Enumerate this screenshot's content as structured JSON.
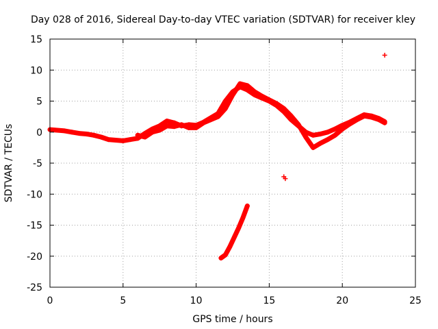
{
  "chart_data": {
    "type": "scatter",
    "title": "Day 028 of 2016, Sidereal Day-to-day VTEC variation (SDTVAR) for receiver kley",
    "xlabel": "GPS time / hours",
    "ylabel": "SDTVAR / TECUs",
    "xlim": [
      0,
      25
    ],
    "ylim": [
      -25,
      15
    ],
    "xticks": [
      0,
      5,
      10,
      15,
      20,
      25
    ],
    "yticks": [
      -25,
      -20,
      -15,
      -10,
      -5,
      0,
      5,
      10,
      15
    ],
    "xtick_labels": [
      "0",
      "5",
      "10",
      "15",
      "20",
      "25"
    ],
    "ytick_labels": [
      "-25",
      "-20",
      "-15",
      "-10",
      "-5",
      "0",
      "5",
      "10",
      "15"
    ],
    "grid": true,
    "marker": "+",
    "color": "#ff0000",
    "series": [
      {
        "name": "main trace",
        "x": [
          0.0,
          0.5,
          1.0,
          1.5,
          2.0,
          2.5,
          3.0,
          3.5,
          4.0,
          4.5,
          5.0,
          5.5,
          6.0,
          6.5,
          7.0,
          7.5,
          8.0,
          8.5,
          9.0,
          9.5,
          10.0,
          10.5,
          11.0,
          11.5,
          12.0,
          12.5,
          13.0,
          13.5,
          14.0,
          14.5,
          15.0,
          15.5,
          16.0,
          16.5,
          17.0,
          17.5,
          18.0,
          18.5,
          19.0,
          19.5,
          20.0,
          20.5,
          21.0,
          21.5,
          22.0,
          22.5,
          22.9
        ],
        "y": [
          0.4,
          0.3,
          0.2,
          0.0,
          -0.2,
          -0.3,
          -0.5,
          -0.8,
          -1.2,
          -1.3,
          -1.4,
          -1.2,
          -1.0,
          -0.2,
          0.5,
          1.0,
          1.8,
          1.5,
          1.0,
          1.2,
          1.1,
          1.6,
          2.3,
          3.0,
          5.0,
          6.5,
          7.3,
          6.8,
          6.0,
          5.5,
          5.0,
          4.3,
          3.3,
          2.0,
          1.0,
          0.0,
          -0.5,
          -0.3,
          0.0,
          0.5,
          1.1,
          1.6,
          2.2,
          2.8,
          2.6,
          2.2,
          1.7
        ]
      },
      {
        "name": "secondary trace",
        "x": [
          6.0,
          6.5,
          7.0,
          7.5,
          8.0,
          8.5,
          9.0,
          9.5,
          10.0,
          10.5,
          11.0,
          11.5,
          12.0,
          12.5,
          13.0,
          13.5,
          14.0,
          14.5,
          15.0,
          15.5,
          16.0,
          16.5,
          17.0,
          17.5,
          18.0,
          18.5,
          19.0,
          19.5,
          20.0,
          20.5,
          21.0,
          21.5,
          22.0,
          22.5,
          22.9
        ],
        "y": [
          -0.5,
          -0.8,
          0.0,
          0.3,
          1.0,
          0.9,
          1.2,
          0.7,
          0.7,
          1.5,
          2.0,
          2.5,
          3.8,
          6.0,
          7.8,
          7.5,
          6.5,
          5.8,
          5.2,
          4.6,
          3.8,
          2.6,
          1.2,
          -0.8,
          -2.5,
          -1.8,
          -1.2,
          -0.5,
          0.5,
          1.3,
          2.0,
          2.6,
          2.4,
          2.0,
          1.5
        ]
      },
      {
        "name": "descending arc",
        "x": [
          11.7,
          12.0,
          12.3,
          12.6,
          12.9,
          13.2,
          13.5
        ],
        "y": [
          -20.3,
          -19.8,
          -18.5,
          -17.0,
          -15.5,
          -13.8,
          -11.9
        ]
      },
      {
        "name": "isolated points",
        "x": [
          16.0,
          16.1,
          22.9
        ],
        "y": [
          -7.2,
          -7.5,
          12.4
        ]
      }
    ]
  }
}
